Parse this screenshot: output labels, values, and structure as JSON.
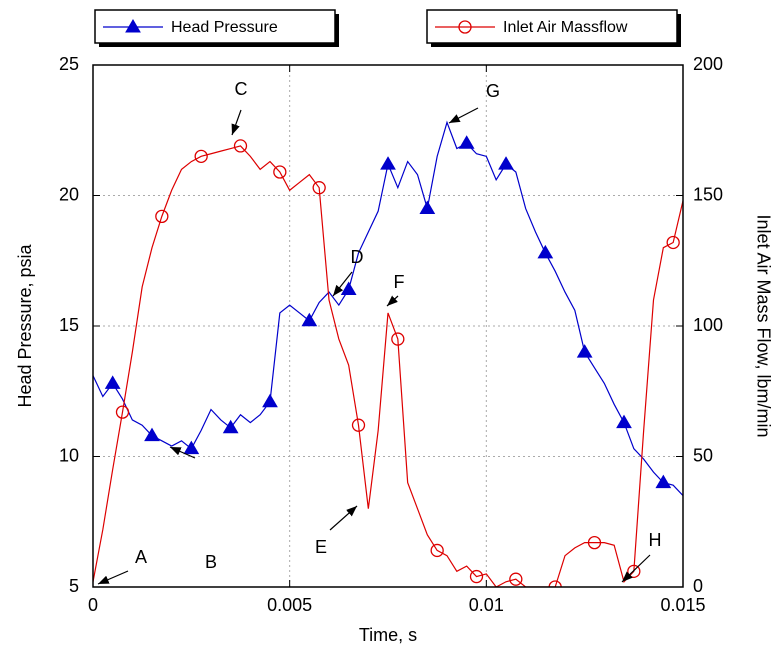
{
  "chart_data": {
    "type": "line",
    "xlabel": "Time, s",
    "ylabel": "Head Pressure, psia",
    "y2label": "Inlet Air Mass Flow, lbm/min",
    "x": [
      0,
      0.00025,
      0.0005,
      0.00075,
      0.001,
      0.00125,
      0.0015,
      0.00175,
      0.002,
      0.00225,
      0.0025,
      0.00275,
      0.003,
      0.00325,
      0.0035,
      0.00375,
      0.004,
      0.00425,
      0.0045,
      0.00475,
      0.005,
      0.00525,
      0.0055,
      0.00575,
      0.006,
      0.00625,
      0.0065,
      0.00675,
      0.007,
      0.00725,
      0.0075,
      0.00775,
      0.008,
      0.00825,
      0.0085,
      0.00875,
      0.009,
      0.00925,
      0.0095,
      0.00975,
      0.01,
      0.01025,
      0.0105,
      0.01075,
      0.011,
      0.01125,
      0.0115,
      0.01175,
      0.012,
      0.01225,
      0.0125,
      0.01275,
      0.013,
      0.01325,
      0.0135,
      0.01375,
      0.014,
      0.01425,
      0.0145,
      0.01475,
      0.015
    ],
    "series": [
      {
        "name": "Head Pressure",
        "color": "#0000cc",
        "marker": "triangle",
        "marker_every": 4,
        "marker_offset": 2,
        "values": [
          13.1,
          12.3,
          12.8,
          12.2,
          11.4,
          11.2,
          10.8,
          10.6,
          10.4,
          10.6,
          10.3,
          11.0,
          11.8,
          11.4,
          11.1,
          11.6,
          11.3,
          11.6,
          12.1,
          15.5,
          15.8,
          15.5,
          15.2,
          15.9,
          16.3,
          15.8,
          16.4,
          17.8,
          18.6,
          19.4,
          21.2,
          20.3,
          21.3,
          20.8,
          19.5,
          21.5,
          22.8,
          21.8,
          22.0,
          21.6,
          21.5,
          20.6,
          21.2,
          20.9,
          19.5,
          18.6,
          17.8,
          17.1,
          16.3,
          15.6,
          14.0,
          13.4,
          12.8,
          12.0,
          11.3,
          10.3,
          9.9,
          9.4,
          9.0,
          8.9,
          8.5
        ]
      },
      {
        "name": "Inlet Air Massflow",
        "color": "#dd0000",
        "marker": "circle",
        "marker_every": 4,
        "marker_offset": 3,
        "axis": "y2",
        "values": [
          2,
          22,
          45,
          67,
          90,
          115,
          130,
          142,
          152,
          160,
          163,
          165,
          166,
          167,
          168,
          169,
          165,
          160,
          163,
          159,
          152,
          155,
          158,
          153,
          110,
          95,
          85,
          62,
          30,
          60,
          105,
          95,
          40,
          30,
          20,
          14,
          12,
          6,
          8,
          4,
          5,
          0,
          2,
          3,
          0,
          0,
          0,
          0,
          12,
          15,
          17,
          17,
          17,
          16,
          2,
          6,
          60,
          110,
          130,
          132,
          148
        ]
      }
    ],
    "xlim": [
      0,
      0.015
    ],
    "xticks": [
      0,
      0.005,
      0.01,
      0.015
    ],
    "ylim": [
      5,
      25
    ],
    "yticks": [
      5,
      10,
      15,
      20,
      25
    ],
    "y2lim": [
      0,
      200
    ],
    "y2ticks": [
      0,
      50,
      100,
      150,
      200
    ],
    "grid": true,
    "annotations": [
      "A",
      "B",
      "C",
      "D",
      "E",
      "F",
      "G",
      "H"
    ]
  }
}
